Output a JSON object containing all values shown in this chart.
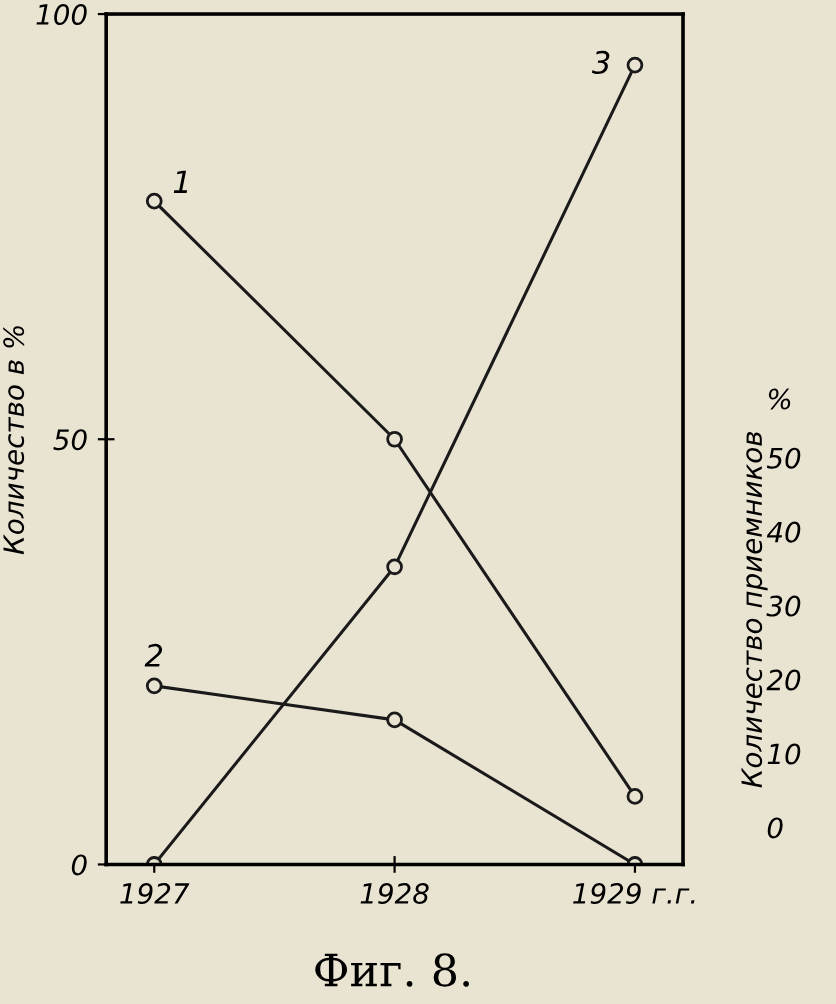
{
  "chart_data": {
    "type": "line",
    "title": "Фиг. 8.",
    "ylabel": "Количество в %",
    "y2label": "Количество приемников",
    "categories": [
      "1927",
      "1928",
      "1929 г.г."
    ],
    "series": [
      {
        "name": "1",
        "color": "#1a1a1a",
        "values": [
          78,
          50,
          8
        ]
      },
      {
        "name": "2",
        "color": "#1a1a1a",
        "values": [
          21,
          17,
          0
        ]
      },
      {
        "name": "3",
        "color": "#1a1a1a",
        "values": [
          0,
          35,
          94
        ]
      }
    ],
    "ylim": [
      0,
      100
    ],
    "yticks": [
      0,
      50,
      100
    ],
    "y2lim": [
      -5,
      110
    ],
    "y2ticks": [
      0,
      10,
      20,
      30,
      40,
      50,
      {
        "value": 58,
        "label": "%"
      }
    ],
    "marker": "circle",
    "line_style": "solid",
    "grid": false,
    "legend": false
  }
}
